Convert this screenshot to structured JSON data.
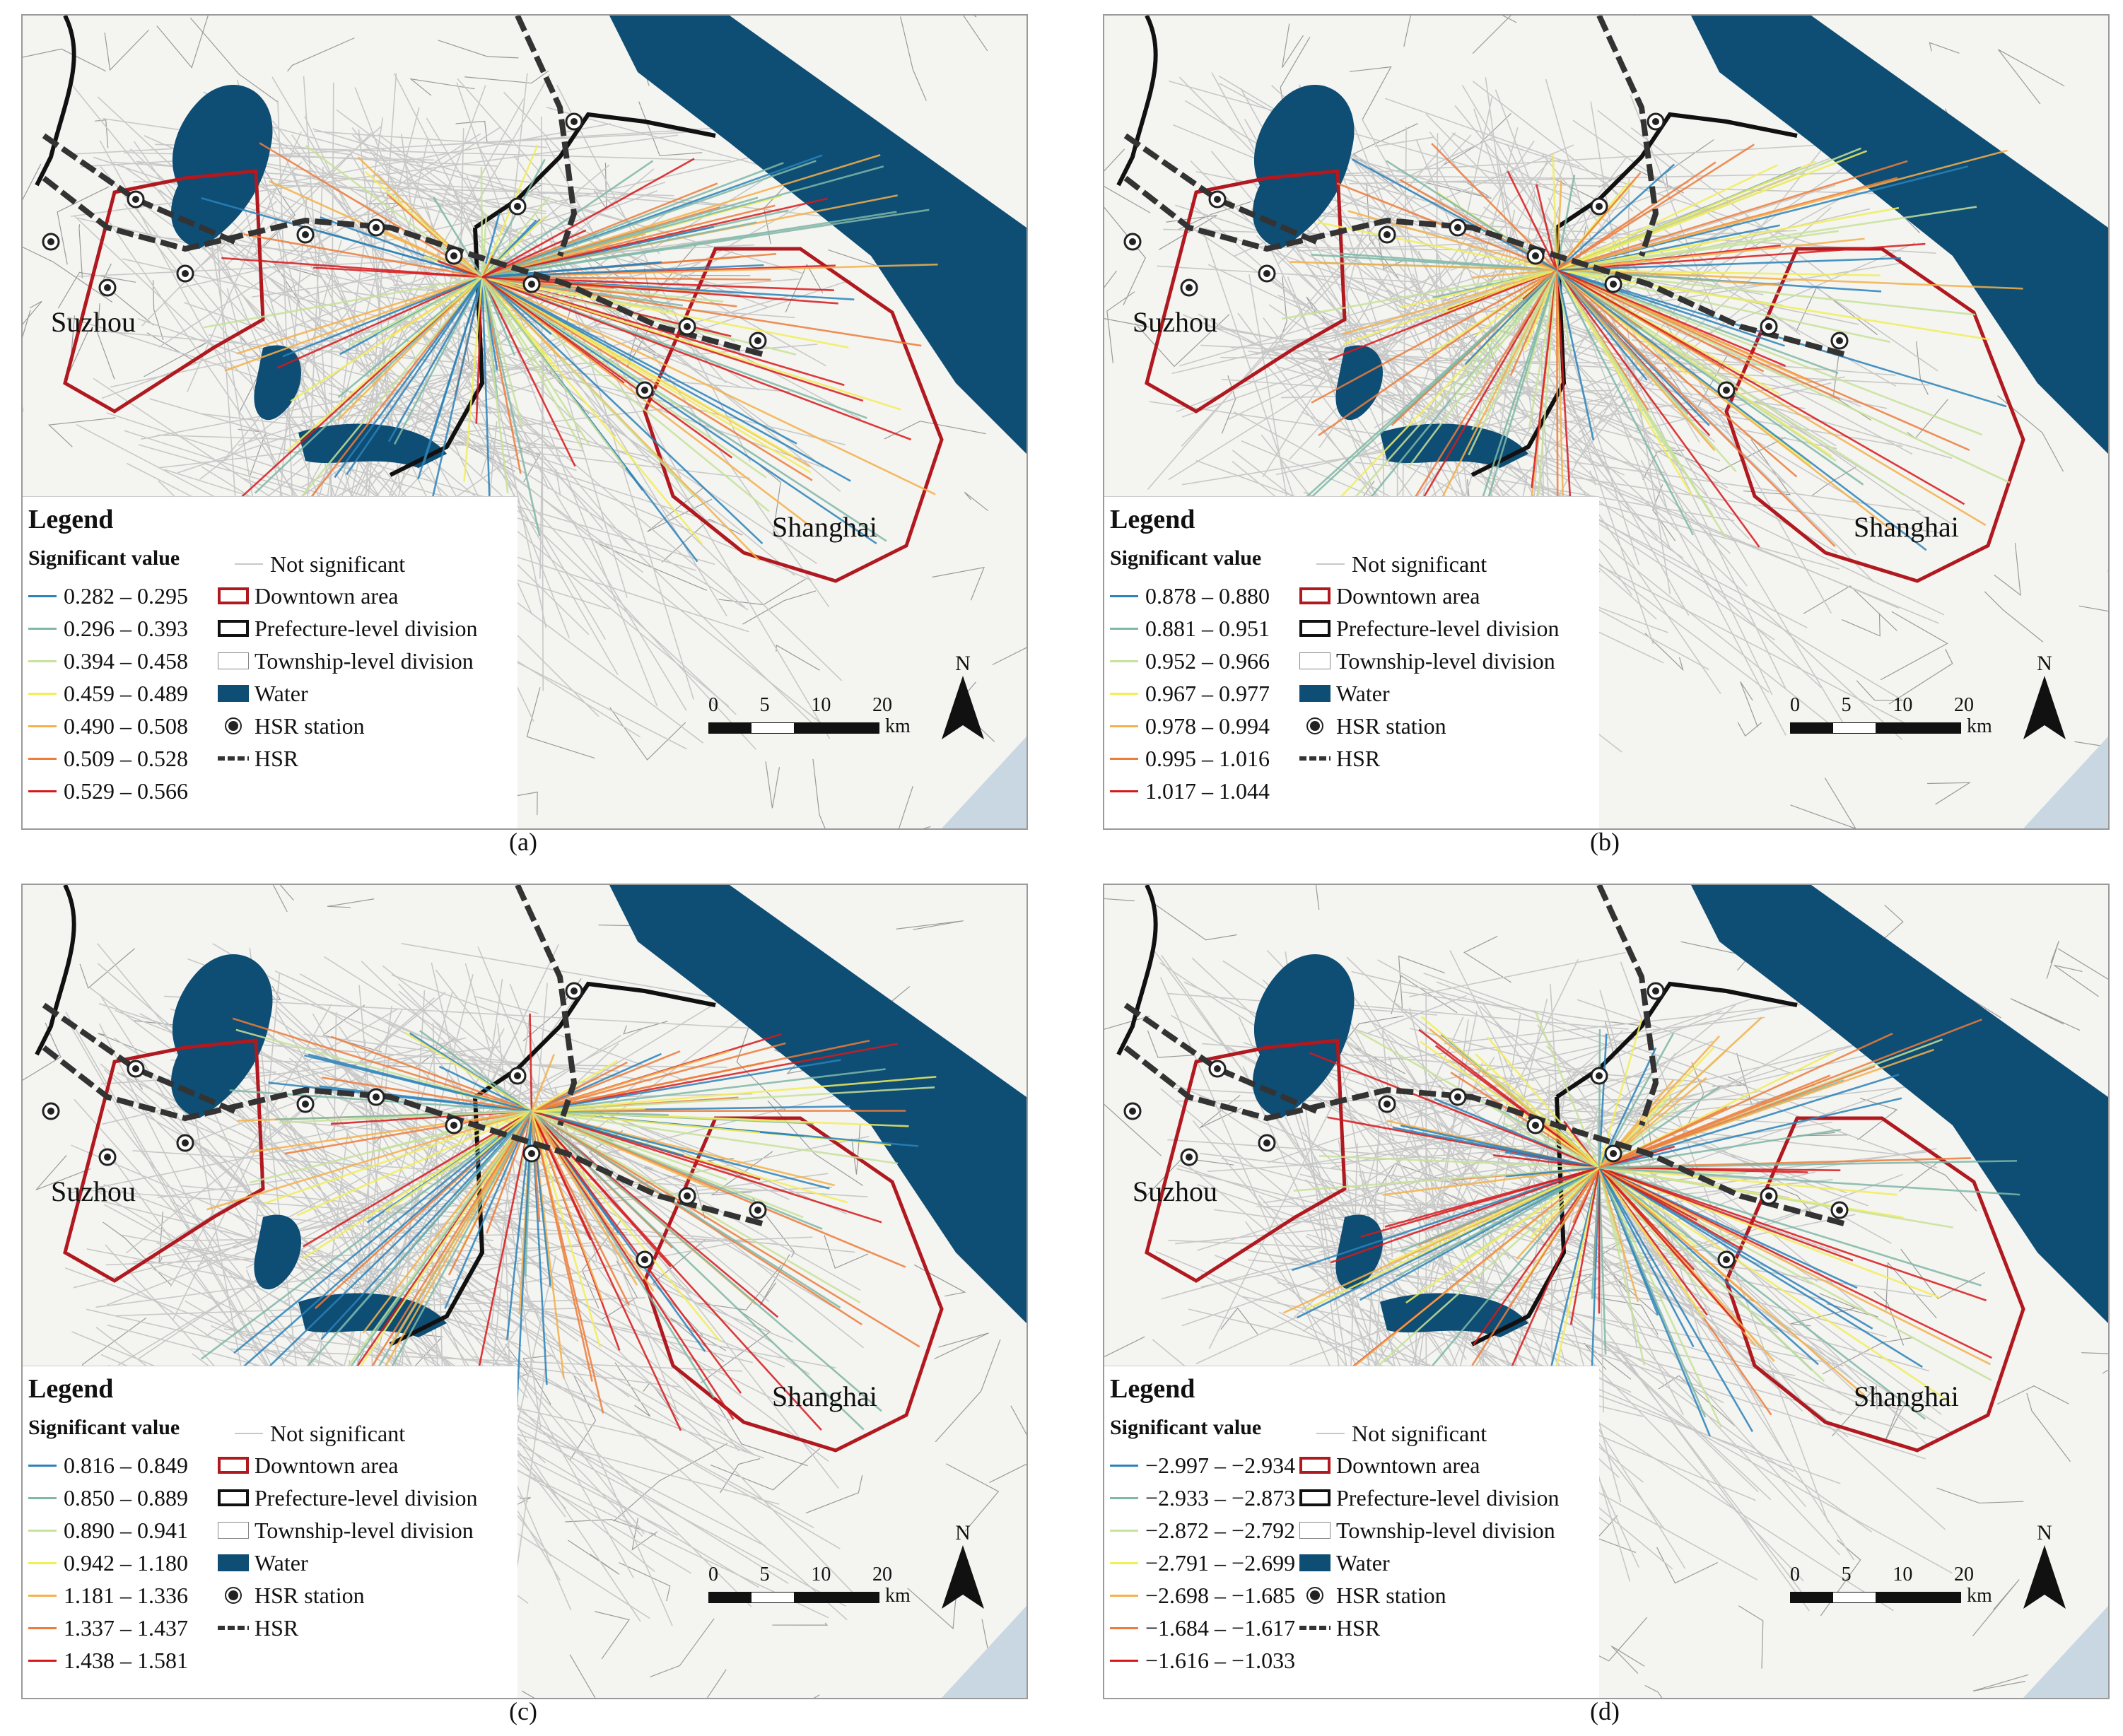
{
  "panels": [
    {
      "caption": "(a)",
      "legend_title": "Legend",
      "significant_label": "Significant value",
      "classes": [
        {
          "range": "0.282 – 0.295",
          "color": "#2b83ba"
        },
        {
          "range": "0.296 – 0.393",
          "color": "#7fb8a6"
        },
        {
          "range": "0.394 – 0.458",
          "color": "#c7e29a"
        },
        {
          "range": "0.459 – 0.489",
          "color": "#f2ee5a"
        },
        {
          "range": "0.490 – 0.508",
          "color": "#f5b14a"
        },
        {
          "range": "0.509 – 0.528",
          "color": "#ee7d3b"
        },
        {
          "range": "0.529 – 0.566",
          "color": "#d7191c"
        }
      ],
      "symbols": {
        "not_significant": "Not significant",
        "downtown": "Downtown area",
        "prefecture": "Prefecture-level division",
        "township": "Township-level division",
        "water": "Water",
        "hsr_station": "HSR station",
        "hsr": "HSR"
      },
      "labels": {
        "suzhou": "Suzhou",
        "shanghai": "Shanghai"
      },
      "scale": {
        "t0": "0",
        "t5": "5",
        "t10": "10",
        "t20": "20",
        "unit": "km"
      },
      "north": "N"
    },
    {
      "caption": "(b)",
      "legend_title": "Legend",
      "significant_label": "Significant value",
      "classes": [
        {
          "range": "0.878 – 0.880",
          "color": "#2b83ba"
        },
        {
          "range": "0.881 – 0.951",
          "color": "#7fb8a6"
        },
        {
          "range": "0.952 – 0.966",
          "color": "#c7e29a"
        },
        {
          "range": "0.967 – 0.977",
          "color": "#f2ee5a"
        },
        {
          "range": "0.978 – 0.994",
          "color": "#f5b14a"
        },
        {
          "range": "0.995 – 1.016",
          "color": "#ee7d3b"
        },
        {
          "range": "1.017 – 1.044",
          "color": "#d7191c"
        }
      ],
      "symbols": {
        "not_significant": "Not significant",
        "downtown": "Downtown area",
        "prefecture": "Prefecture-level division",
        "township": "Township-level division",
        "water": "Water",
        "hsr_station": "HSR station",
        "hsr": "HSR"
      },
      "labels": {
        "suzhou": "Suzhou",
        "shanghai": "Shanghai"
      },
      "scale": {
        "t0": "0",
        "t5": "5",
        "t10": "10",
        "t20": "20",
        "unit": "km"
      },
      "north": "N"
    },
    {
      "caption": "(c)",
      "legend_title": "Legend",
      "significant_label": "Significant value",
      "classes": [
        {
          "range": "0.816 – 0.849",
          "color": "#2b83ba"
        },
        {
          "range": "0.850 – 0.889",
          "color": "#7fb8a6"
        },
        {
          "range": "0.890 – 0.941",
          "color": "#c7e29a"
        },
        {
          "range": "0.942 – 1.180",
          "color": "#f2ee5a"
        },
        {
          "range": "1.181 – 1.336",
          "color": "#f5b14a"
        },
        {
          "range": "1.337 – 1.437",
          "color": "#ee7d3b"
        },
        {
          "range": "1.438 – 1.581",
          "color": "#d7191c"
        }
      ],
      "symbols": {
        "not_significant": "Not significant",
        "downtown": "Downtown area",
        "prefecture": "Prefecture-level division",
        "township": "Township-level division",
        "water": "Water",
        "hsr_station": "HSR station",
        "hsr": "HSR"
      },
      "labels": {
        "suzhou": "Suzhou",
        "shanghai": "Shanghai"
      },
      "scale": {
        "t0": "0",
        "t5": "5",
        "t10": "10",
        "t20": "20",
        "unit": "km"
      },
      "north": "N"
    },
    {
      "caption": "(d)",
      "legend_title": "Legend",
      "significant_label": "Significant value",
      "classes": [
        {
          "range": "−2.997 – −2.934",
          "color": "#2b83ba"
        },
        {
          "range": "−2.933 – −2.873",
          "color": "#7fb8a6"
        },
        {
          "range": "−2.872 – −2.792",
          "color": "#c7e29a"
        },
        {
          "range": "−2.791 – −2.699",
          "color": "#f2ee5a"
        },
        {
          "range": "−2.698 – −1.685",
          "color": "#f5b14a"
        },
        {
          "range": "−1.684 – −1.617",
          "color": "#ee7d3b"
        },
        {
          "range": "−1.616 – −1.033",
          "color": "#d7191c"
        }
      ],
      "symbols": {
        "not_significant": "Not significant",
        "downtown": "Downtown area",
        "prefecture": "Prefecture-level division",
        "township": "Township-level division",
        "water": "Water",
        "hsr_station": "HSR station",
        "hsr": "HSR"
      },
      "labels": {
        "suzhou": "Suzhou",
        "shanghai": "Shanghai"
      },
      "scale": {
        "t0": "0",
        "t5": "5",
        "t10": "10",
        "t20": "20",
        "unit": "km"
      },
      "north": "N"
    }
  ],
  "colors": {
    "water": "#0e4d74",
    "downtown": "#b0191f",
    "not_significant": "#c8c8c8"
  }
}
